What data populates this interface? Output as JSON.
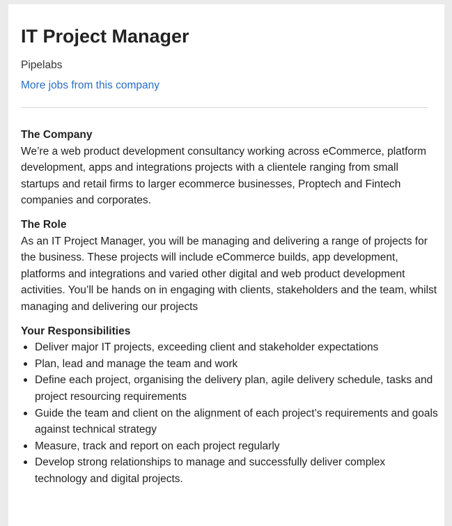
{
  "job": {
    "title": "IT Project Manager",
    "company": "Pipelabs",
    "more_jobs_link": "More jobs from this company"
  },
  "sections": {
    "company": {
      "heading": "The Company",
      "text": "We’re a web product development consultancy working across eCommerce, platform development, apps and integrations projects with a clientele ranging from small startups and retail firms to larger ecommerce businesses, Proptech  and Fintech companies and corporates."
    },
    "role": {
      "heading": "The Role",
      "text": "As an IT Project Manager, you will be managing and delivering a range of projects for the business. These projects will include eCommerce builds, app development, platforms and integrations and varied other digital and web product development activities. You’ll be hands on in engaging with clients, stakeholders and the team, whilst managing and delivering our projects"
    },
    "responsibilities": {
      "heading": "Your Responsibilities",
      "items": [
        "Deliver major IT projects, exceeding client and stakeholder expectations",
        "Plan, lead and manage the team and work",
        "Define each project, organising the delivery plan, agile delivery schedule, tasks and project resourcing requirements",
        "Guide the team and client on the alignment of each project’s requirements and goals against technical strategy",
        "Measure, track and report on each project regularly",
        "Develop strong relationships to manage and successfully deliver complex technology and digital projects."
      ]
    }
  },
  "colors": {
    "page_background": "#ebebeb",
    "card_background": "#ffffff",
    "link": "#2a6ec2",
    "text": "#222222"
  }
}
